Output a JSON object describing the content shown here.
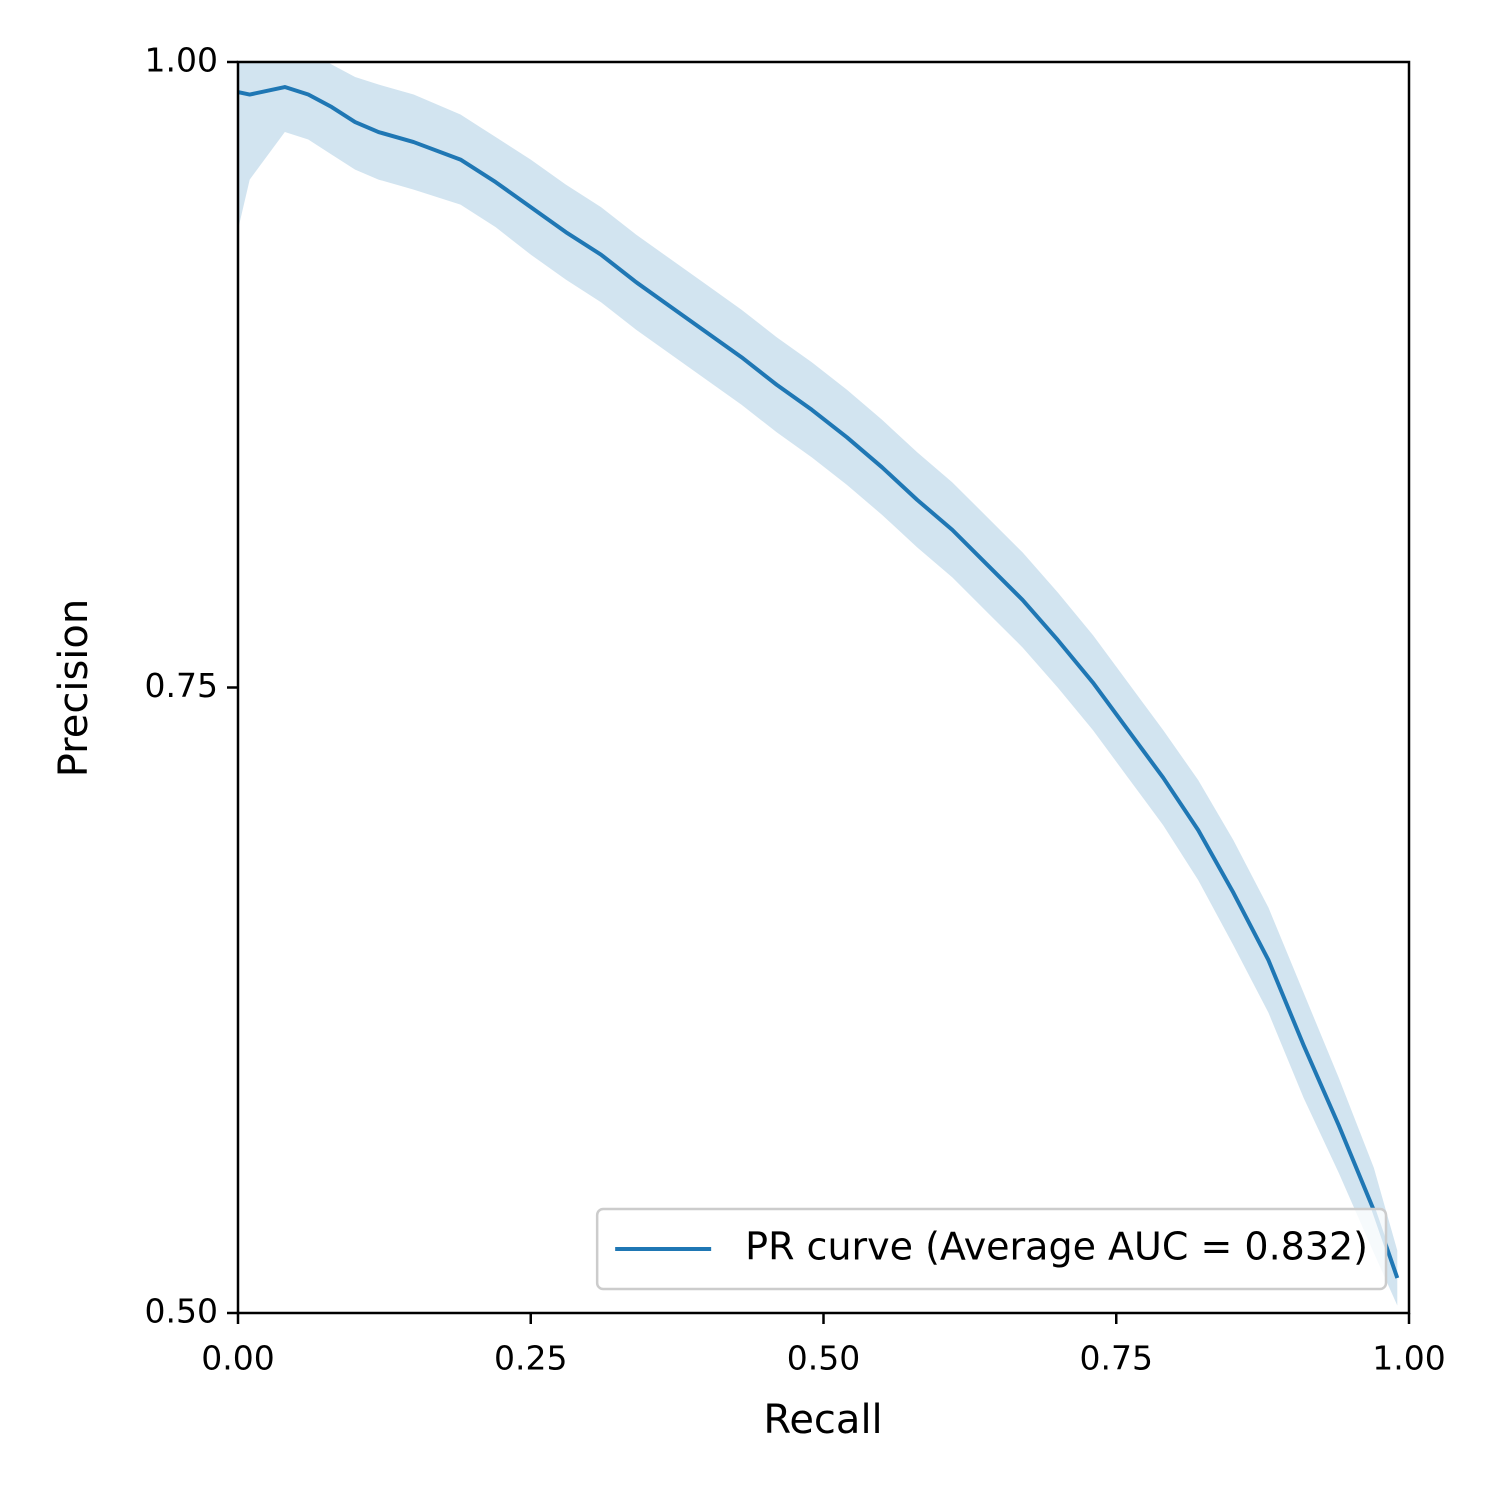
{
  "chart_data": {
    "type": "line",
    "xlabel": "Recall",
    "ylabel": "Precision",
    "x": [
      0,
      0.01,
      0.04,
      0.06,
      0.08,
      0.1,
      0.12,
      0.15,
      0.19,
      0.22,
      0.25,
      0.28,
      0.31,
      0.34,
      0.37,
      0.4,
      0.43,
      0.46,
      0.49,
      0.52,
      0.55,
      0.58,
      0.61,
      0.64,
      0.67,
      0.7,
      0.73,
      0.76,
      0.79,
      0.82,
      0.85,
      0.88,
      0.91,
      0.94,
      0.97,
      0.99
    ],
    "series": [
      {
        "name": "PR curve (Average AUC = 0.832)",
        "color": "#1f77b4",
        "band_color": "#1f77b4",
        "values": [
          0.988,
          0.987,
          0.99,
          0.987,
          0.982,
          0.976,
          0.972,
          0.968,
          0.961,
          0.952,
          0.942,
          0.932,
          0.923,
          0.912,
          0.902,
          0.892,
          0.882,
          0.871,
          0.861,
          0.85,
          0.838,
          0.825,
          0.813,
          0.799,
          0.785,
          0.769,
          0.752,
          0.733,
          0.714,
          0.693,
          0.668,
          0.641,
          0.607,
          0.575,
          0.541,
          0.514
        ],
        "upper": [
          1.01,
          1.01,
          1.01,
          1.005,
          0.999,
          0.994,
          0.991,
          0.987,
          0.979,
          0.97,
          0.961,
          0.951,
          0.942,
          0.931,
          0.921,
          0.911,
          0.901,
          0.89,
          0.88,
          0.869,
          0.857,
          0.844,
          0.832,
          0.818,
          0.804,
          0.788,
          0.771,
          0.752,
          0.733,
          0.713,
          0.689,
          0.662,
          0.628,
          0.594,
          0.558,
          0.525
        ],
        "lower": [
          0.933,
          0.953,
          0.972,
          0.969,
          0.963,
          0.957,
          0.953,
          0.949,
          0.943,
          0.934,
          0.923,
          0.913,
          0.904,
          0.893,
          0.883,
          0.873,
          0.863,
          0.852,
          0.842,
          0.831,
          0.819,
          0.806,
          0.794,
          0.78,
          0.766,
          0.75,
          0.733,
          0.714,
          0.695,
          0.673,
          0.647,
          0.62,
          0.586,
          0.556,
          0.524,
          0.503
        ]
      }
    ],
    "xlim": [
      0,
      1
    ],
    "ylim": [
      0.5,
      1
    ],
    "xticks": [
      {
        "value": 0,
        "label": "0.00"
      },
      {
        "value": 0.25,
        "label": "0.25"
      },
      {
        "value": 0.5,
        "label": "0.50"
      },
      {
        "value": 0.75,
        "label": "0.75"
      },
      {
        "value": 1,
        "label": "1.00"
      }
    ],
    "yticks": [
      {
        "value": 0.5,
        "label": "0.50"
      },
      {
        "value": 0.75,
        "label": "0.75"
      },
      {
        "value": 1,
        "label": "1.00"
      }
    ],
    "grid": false,
    "legend": "lower right"
  }
}
